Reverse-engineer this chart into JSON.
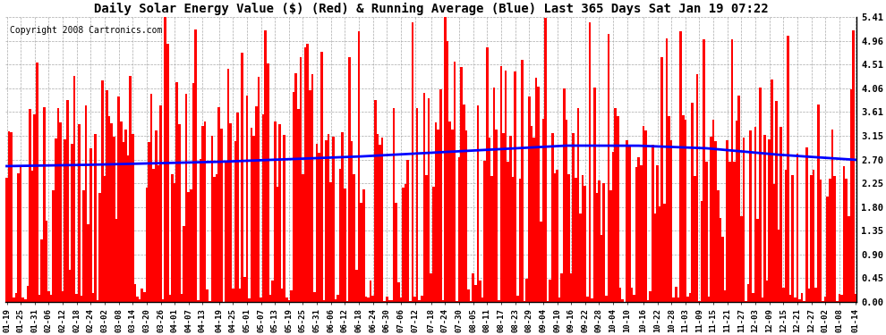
{
  "title": "Daily Solar Energy Value ($) (Red) & Running Average (Blue) Last 365 Days Sat Jan 19 07:22",
  "copyright_text": "Copyright 2008 Cartronics.com",
  "ylim": [
    0.0,
    5.41
  ],
  "yticks": [
    0.0,
    0.45,
    0.9,
    1.35,
    1.8,
    2.25,
    2.7,
    3.15,
    3.61,
    4.06,
    4.51,
    4.96,
    5.41
  ],
  "bar_color": "#FF0000",
  "avg_color": "#0000FF",
  "bg_color": "#FFFFFF",
  "grid_color": "#AAAAAA",
  "title_fontsize": 10,
  "copyright_fontsize": 7,
  "tick_fontsize": 7.5,
  "xlabel_fontsize": 6.5,
  "x_labels": [
    "01-19",
    "01-25",
    "01-31",
    "02-06",
    "02-12",
    "02-18",
    "02-24",
    "03-02",
    "03-08",
    "03-14",
    "03-20",
    "03-26",
    "04-01",
    "04-07",
    "04-13",
    "04-19",
    "04-25",
    "05-01",
    "05-07",
    "05-13",
    "05-19",
    "05-25",
    "05-31",
    "06-06",
    "06-12",
    "06-18",
    "06-24",
    "06-30",
    "07-06",
    "07-12",
    "07-18",
    "07-24",
    "07-30",
    "08-05",
    "08-11",
    "08-17",
    "08-23",
    "08-29",
    "09-04",
    "09-10",
    "09-16",
    "09-22",
    "09-28",
    "10-04",
    "10-10",
    "10-16",
    "10-22",
    "10-28",
    "11-03",
    "11-09",
    "11-15",
    "11-21",
    "11-27",
    "12-03",
    "12-09",
    "12-15",
    "12-21",
    "12-27",
    "01-02",
    "01-08",
    "01-14"
  ],
  "avg_x": [
    0,
    30,
    60,
    90,
    120,
    150,
    180,
    210,
    240,
    270,
    300,
    330,
    364
  ],
  "avg_y": [
    2.58,
    2.6,
    2.63,
    2.66,
    2.71,
    2.76,
    2.83,
    2.9,
    2.97,
    2.97,
    2.92,
    2.8,
    2.7
  ]
}
